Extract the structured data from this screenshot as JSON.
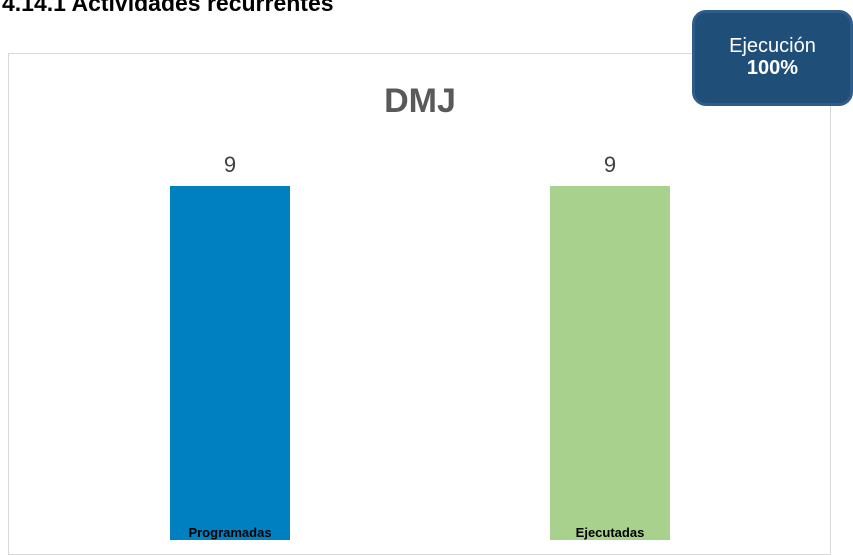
{
  "section": {
    "heading": "4.14.1  Actividades recurrentes"
  },
  "badge": {
    "label": "Ejecución",
    "value": "100%",
    "color": "#1f4e79"
  },
  "chart_data": {
    "type": "bar",
    "title": "DMJ",
    "categories": [
      "Programadas",
      "Ejecutadas"
    ],
    "values": [
      9,
      9
    ],
    "colors": [
      "#0080c0",
      "#a9d18e"
    ],
    "data_labels": true,
    "grid": false,
    "legend": "none"
  }
}
